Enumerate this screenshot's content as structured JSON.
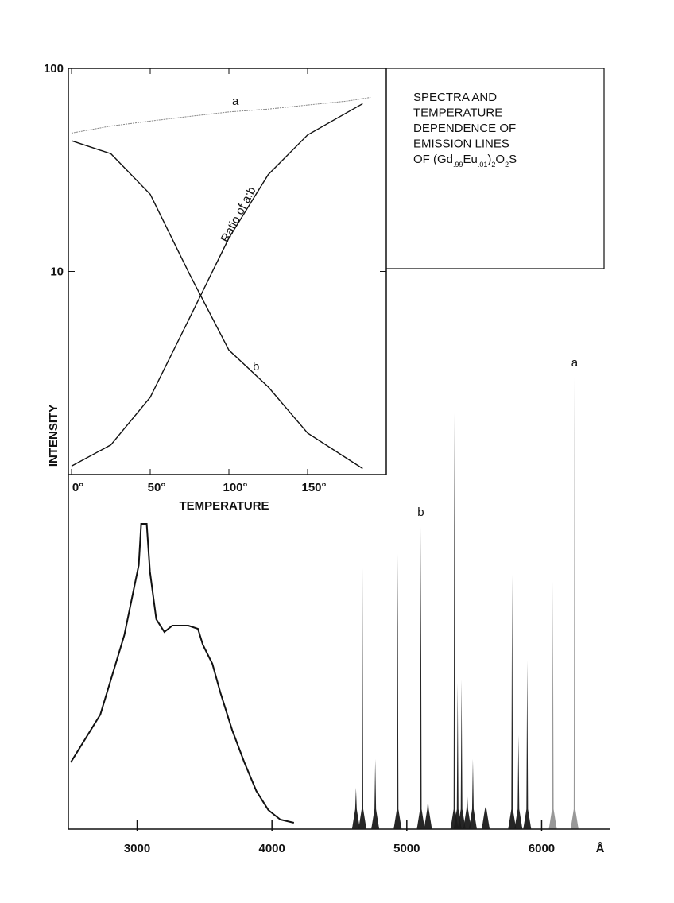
{
  "chart_data": [
    {
      "type": "line",
      "log_y": true,
      "title_lines": [
        "SPECTRA AND",
        "TEMPERATURE",
        "DEPENDENCE OF",
        "EMISSION LINES"
      ],
      "formula": [
        "OF (Gd",
        ".99",
        "Eu",
        ".01",
        ")",
        "2",
        "O",
        "2",
        "S"
      ],
      "xlabel": "TEMPERATURE",
      "ylabel": "INTENSITY",
      "xlim": [
        0,
        200
      ],
      "ylim": [
        1,
        100
      ],
      "xticks": [
        {
          "value": 0,
          "label": "0°"
        },
        {
          "value": 50,
          "label": "50°"
        },
        {
          "value": 100,
          "label": "100°"
        },
        {
          "value": 150,
          "label": "150°"
        }
      ],
      "yticks": [
        10,
        100
      ],
      "series": [
        {
          "name": "a",
          "color": "#888888",
          "x": [
            0,
            25,
            50,
            75,
            100,
            125,
            150,
            175,
            190
          ],
          "values": [
            48,
            52,
            55,
            58,
            61,
            63,
            66,
            69,
            72
          ]
        },
        {
          "name": "b",
          "color": "#111111",
          "x": [
            0,
            25,
            50,
            75,
            100,
            125,
            150,
            185
          ],
          "values": [
            44,
            38,
            24,
            9.7,
            4.1,
            2.7,
            1.6,
            1.07
          ]
        },
        {
          "name": "Ratio of a:b",
          "color": "#111111",
          "x": [
            0,
            25,
            50,
            75,
            100,
            125,
            150,
            185
          ],
          "values": [
            1.1,
            1.4,
            2.4,
            5.9,
            14.6,
            30,
            47,
            67
          ]
        }
      ]
    },
    {
      "type": "spectrum",
      "xlabel": "Å",
      "xlim": [
        2490,
        6510
      ],
      "ylim": [
        0,
        150
      ],
      "xticks": [
        3000,
        4000,
        5000,
        6000
      ],
      "series": [
        {
          "color": "#111111",
          "x": [
            2508,
            2727,
            2905,
            3012,
            3030,
            3071,
            3095,
            3142,
            3202,
            3261,
            3380,
            3451,
            3487,
            3558,
            3617,
            3706,
            3795,
            3884,
            3973,
            4062,
            4163
          ],
          "values": [
            21,
            36,
            61,
            83,
            96,
            96,
            81,
            66,
            62,
            64,
            64,
            63,
            58,
            52,
            43,
            31,
            21,
            12,
            6,
            3,
            2
          ]
        }
      ],
      "peaks": {
        "color": "#1a1a1a",
        "x": [
          4623,
          4671,
          4766,
          4932,
          5104,
          5157,
          5353,
          5377,
          5406,
          5448,
          5490,
          5585,
          5781,
          5828,
          5893,
          6083,
          6244
        ],
        "values": [
          13,
          82,
          22,
          86.5,
          95,
          9.5,
          131,
          46,
          47,
          11,
          22,
          7,
          80,
          29.5,
          53,
          78,
          142
        ],
        "labels": [
          null,
          null,
          null,
          null,
          "b",
          null,
          null,
          null,
          null,
          null,
          null,
          null,
          null,
          null,
          null,
          null,
          "a"
        ]
      }
    }
  ]
}
